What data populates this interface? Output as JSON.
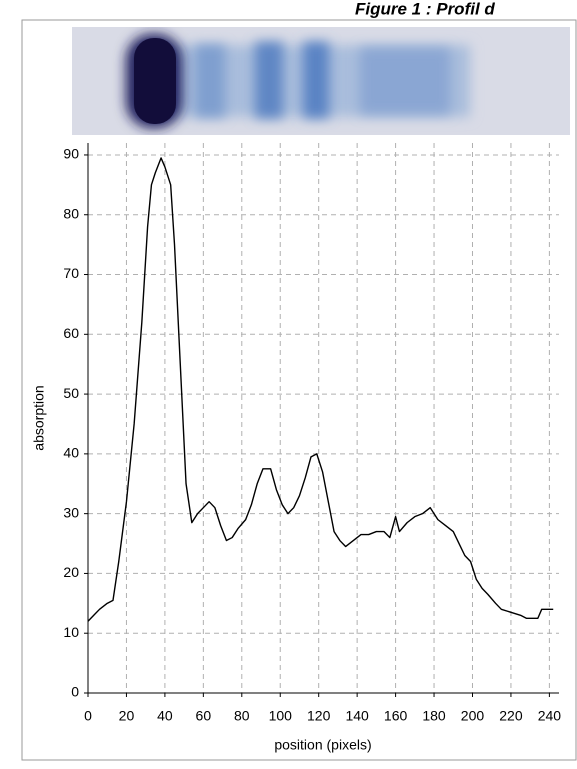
{
  "chart_data": {
    "type": "line",
    "title": "Figure 1 : Profil d",
    "x_label": "position (pixels)",
    "y_label": "absorption",
    "x": [
      0,
      3,
      6,
      10,
      13,
      16,
      20,
      24,
      28,
      31,
      33,
      35,
      38,
      40,
      43,
      45,
      48,
      51,
      54,
      57,
      60,
      63,
      66,
      69,
      72,
      75,
      78,
      82,
      85,
      88,
      91,
      95,
      98,
      101,
      104,
      107,
      110,
      113,
      116,
      119,
      122,
      125,
      128,
      131,
      134,
      138,
      142,
      146,
      150,
      154,
      157,
      160,
      162,
      166,
      170,
      174,
      178,
      182,
      186,
      190,
      193,
      196,
      199,
      202,
      205,
      208,
      212,
      215,
      220,
      225,
      228,
      231,
      234,
      236,
      242
    ],
    "series": [
      {
        "name": "absorption",
        "color": "#000000",
        "values": [
          12,
          13,
          14,
          15,
          15.5,
          22,
          32,
          45,
          62,
          78,
          85,
          87,
          89.5,
          88,
          85,
          75,
          55,
          35,
          28.5,
          30,
          31,
          32,
          31,
          28,
          25.5,
          26,
          27.5,
          29,
          31.5,
          35,
          37.5,
          37.5,
          34,
          31.5,
          30,
          31,
          33,
          36,
          39.5,
          40,
          37,
          32,
          27,
          25.5,
          24.5,
          25.5,
          26.5,
          26.5,
          27,
          27,
          26,
          29.5,
          27,
          28.5,
          29.5,
          30,
          31,
          29,
          28,
          27,
          25,
          23,
          22,
          19,
          17.5,
          16.5,
          15,
          14,
          13.5,
          13,
          12.5,
          12.5,
          12.5,
          14,
          14
        ]
      }
    ],
    "xlim": [
      0,
      245
    ],
    "ylim": [
      0,
      92
    ],
    "xticks": [
      0,
      20,
      40,
      60,
      80,
      100,
      120,
      140,
      160,
      180,
      200,
      220,
      240
    ],
    "yticks": [
      0,
      10,
      20,
      30,
      40,
      50,
      60,
      70,
      80,
      90
    ],
    "grid": true
  }
}
